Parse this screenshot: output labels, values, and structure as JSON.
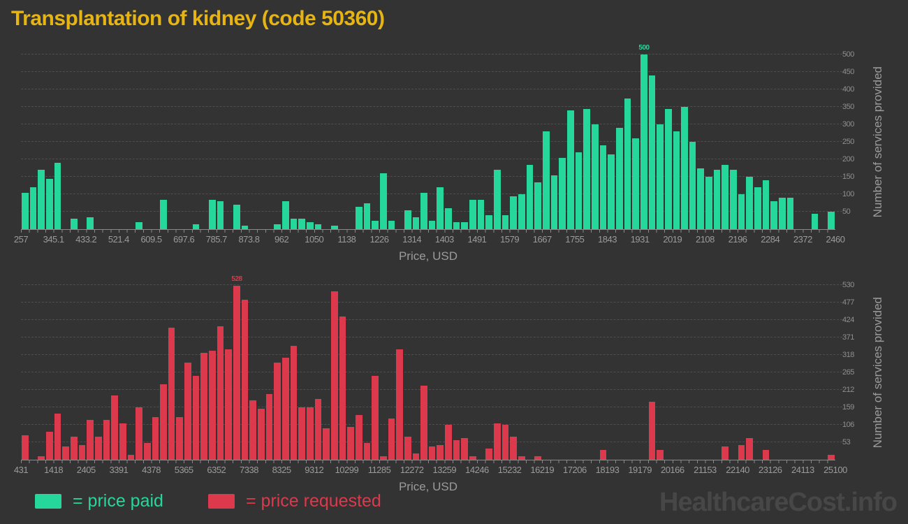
{
  "title": "Transplantation of kidney (code 50360)",
  "watermark": "HealthcareCost.info",
  "colors": {
    "background": "#333333",
    "title": "#E6B513",
    "paid": "#26D79B",
    "requested": "#DC3A4C",
    "tick_text": "#9B9B9B",
    "gridline": "#4E4E4E",
    "axis_line": "#8A8A8A",
    "watermark": "#474747"
  },
  "legend": {
    "items": [
      {
        "label": "= price paid",
        "color": "#26D79B"
      },
      {
        "label": "= price requested",
        "color": "#DC3A4C"
      }
    ]
  },
  "chart_data": [
    {
      "type": "bar",
      "name": "price paid histogram",
      "color": "#26D79B",
      "xlabel": "Price, USD",
      "ylabel": "Number of services provided",
      "xlim": [
        257,
        2460
      ],
      "ylim": [
        0,
        500
      ],
      "bin_width": 22.03,
      "x_tick_labels": [
        "257",
        "345.1",
        "433.2",
        "521.4",
        "609.5",
        "697.6",
        "785.7",
        "873.8",
        "962",
        "1050",
        "1138",
        "1226",
        "1314",
        "1403",
        "1491",
        "1579",
        "1667",
        "1755",
        "1843",
        "1931",
        "2019",
        "2108",
        "2196",
        "2284",
        "2372",
        "2460"
      ],
      "y_ticks": [
        50,
        100,
        150,
        200,
        250,
        300,
        350,
        400,
        450,
        500
      ],
      "grid": true,
      "legend_position": "bottom",
      "peak": {
        "index": 76,
        "value": 500,
        "label": "500"
      },
      "values": [
        105,
        120,
        170,
        145,
        190,
        0,
        30,
        0,
        35,
        0,
        0,
        0,
        0,
        0,
        20,
        0,
        0,
        85,
        0,
        0,
        0,
        15,
        0,
        85,
        80,
        0,
        70,
        10,
        0,
        0,
        0,
        15,
        80,
        30,
        30,
        20,
        15,
        0,
        10,
        0,
        0,
        65,
        75,
        25,
        160,
        25,
        0,
        55,
        35,
        105,
        25,
        120,
        60,
        20,
        20,
        85,
        85,
        40,
        170,
        40,
        95,
        100,
        185,
        135,
        280,
        155,
        205,
        340,
        220,
        345,
        300,
        240,
        215,
        290,
        375,
        260,
        500,
        440,
        300,
        345,
        280,
        350,
        250,
        175,
        150,
        170,
        185,
        170,
        100,
        150,
        120,
        140,
        80,
        90,
        90,
        0,
        0,
        45,
        0,
        50
      ]
    },
    {
      "type": "bar",
      "name": "price requested histogram",
      "color": "#DC3A4C",
      "xlabel": "Price, USD",
      "ylabel": "Number of services provided",
      "xlim": [
        431,
        25100
      ],
      "ylim": [
        0,
        530
      ],
      "bin_width": 246.7,
      "x_tick_labels": [
        "431",
        "1418",
        "2405",
        "3391",
        "4378",
        "5365",
        "6352",
        "7338",
        "8325",
        "9312",
        "10299",
        "11285",
        "12272",
        "13259",
        "14246",
        "15232",
        "16219",
        "17206",
        "18193",
        "19179",
        "20166",
        "21153",
        "22140",
        "23126",
        "24113",
        "25100"
      ],
      "y_ticks": [
        53,
        106,
        159,
        212,
        265,
        318,
        371,
        424,
        477,
        530
      ],
      "grid": true,
      "legend_position": "bottom",
      "peak": {
        "index": 26,
        "value": 528,
        "label": "528"
      },
      "values": [
        75,
        0,
        10,
        85,
        140,
        40,
        70,
        45,
        120,
        70,
        120,
        195,
        110,
        15,
        160,
        50,
        130,
        230,
        400,
        130,
        295,
        255,
        325,
        330,
        405,
        335,
        528,
        485,
        180,
        155,
        200,
        295,
        310,
        345,
        160,
        160,
        185,
        95,
        510,
        435,
        100,
        135,
        50,
        255,
        10,
        125,
        335,
        70,
        20,
        225,
        40,
        45,
        105,
        60,
        65,
        10,
        0,
        35,
        110,
        105,
        70,
        10,
        0,
        10,
        0,
        0,
        0,
        0,
        0,
        0,
        0,
        30,
        0,
        0,
        0,
        0,
        0,
        175,
        30,
        0,
        0,
        0,
        0,
        0,
        0,
        0,
        40,
        0,
        45,
        65,
        0,
        30,
        0,
        0,
        0,
        0,
        0,
        0,
        0,
        15
      ]
    }
  ]
}
